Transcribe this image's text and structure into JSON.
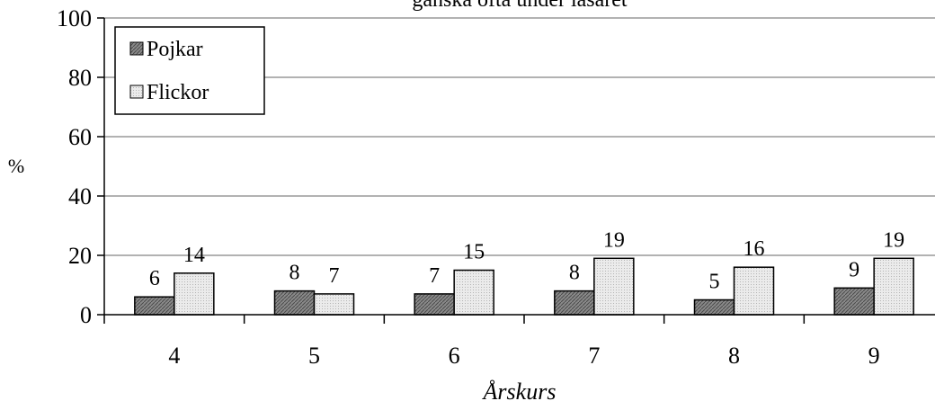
{
  "chart_data": {
    "type": "bar",
    "title": "ganska ofta under läsåret",
    "xlabel": "Årskurs",
    "ylabel": "%",
    "ylim": [
      0,
      100
    ],
    "yticks": [
      0,
      20,
      40,
      60,
      80,
      100
    ],
    "grid": true,
    "legend_position": "top-left",
    "categories": [
      "4",
      "5",
      "6",
      "7",
      "8",
      "9"
    ],
    "series": [
      {
        "name": "Pojkar",
        "values": [
          6,
          8,
          7,
          8,
          5,
          9
        ],
        "color": "#7f7f7f",
        "pattern": "dark-hatch"
      },
      {
        "name": "Flickor",
        "values": [
          14,
          7,
          15,
          19,
          16,
          19
        ],
        "color": "#e6e6e6",
        "pattern": "light-dots"
      }
    ]
  }
}
